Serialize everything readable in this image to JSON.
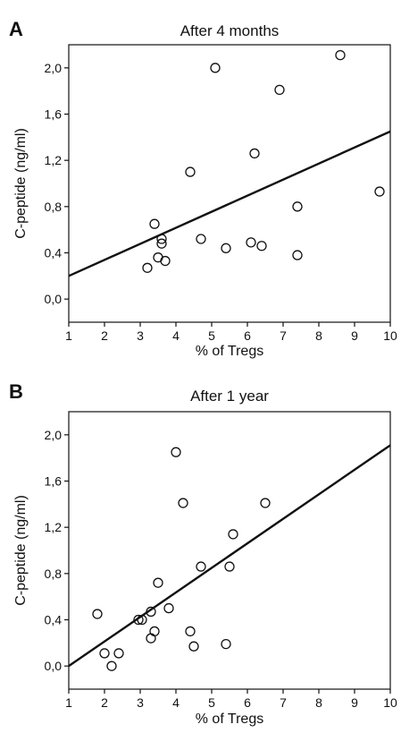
{
  "chart_data": [
    {
      "type": "scatter",
      "panel_letter": "A",
      "title": "After 4 months",
      "xlabel": "% of Tregs",
      "ylabel": "C-peptide (ng/ml)",
      "xlim": [
        1,
        10
      ],
      "ylim": [
        -0.2,
        2.2
      ],
      "xticks": [
        "1",
        "2",
        "3",
        "4",
        "5",
        "6",
        "7",
        "8",
        "9",
        "10"
      ],
      "yticks": [
        "0,0",
        "0,4",
        "0,8",
        "1,2",
        "1,6",
        "2,0"
      ],
      "grid": false,
      "points": [
        {
          "x": 3.2,
          "y": 0.27
        },
        {
          "x": 3.4,
          "y": 0.65
        },
        {
          "x": 3.5,
          "y": 0.36
        },
        {
          "x": 3.6,
          "y": 0.52
        },
        {
          "x": 3.6,
          "y": 0.48
        },
        {
          "x": 3.7,
          "y": 0.33
        },
        {
          "x": 4.4,
          "y": 1.1
        },
        {
          "x": 4.7,
          "y": 0.52
        },
        {
          "x": 5.1,
          "y": 2.0
        },
        {
          "x": 5.4,
          "y": 0.44
        },
        {
          "x": 6.1,
          "y": 0.49
        },
        {
          "x": 6.2,
          "y": 1.26
        },
        {
          "x": 6.4,
          "y": 0.46
        },
        {
          "x": 6.9,
          "y": 1.81
        },
        {
          "x": 7.4,
          "y": 0.8
        },
        {
          "x": 7.4,
          "y": 0.38
        },
        {
          "x": 8.6,
          "y": 2.11
        },
        {
          "x": 9.7,
          "y": 0.93
        }
      ],
      "fit_line": {
        "x": [
          1,
          10
        ],
        "y": [
          0.2,
          1.45
        ]
      }
    },
    {
      "type": "scatter",
      "panel_letter": "B",
      "title": "After 1 year",
      "xlabel": "% of Tregs",
      "ylabel": "C-peptide (ng/ml)",
      "xlim": [
        1,
        10
      ],
      "ylim": [
        -0.2,
        2.2
      ],
      "xticks": [
        "1",
        "2",
        "3",
        "4",
        "5",
        "6",
        "7",
        "8",
        "9",
        "10"
      ],
      "yticks": [
        "0,0",
        "0,4",
        "0,8",
        "1,2",
        "1,6",
        "2,0"
      ],
      "grid": false,
      "points": [
        {
          "x": 1.8,
          "y": 0.45
        },
        {
          "x": 2.0,
          "y": 0.11
        },
        {
          "x": 2.2,
          "y": 0.0
        },
        {
          "x": 2.4,
          "y": 0.11
        },
        {
          "x": 2.95,
          "y": 0.4
        },
        {
          "x": 3.05,
          "y": 0.4
        },
        {
          "x": 3.3,
          "y": 0.47
        },
        {
          "x": 3.3,
          "y": 0.24
        },
        {
          "x": 3.4,
          "y": 0.3
        },
        {
          "x": 3.5,
          "y": 0.72
        },
        {
          "x": 3.8,
          "y": 0.5
        },
        {
          "x": 4.0,
          "y": 1.85
        },
        {
          "x": 4.2,
          "y": 1.41
        },
        {
          "x": 4.4,
          "y": 0.3
        },
        {
          "x": 4.5,
          "y": 0.17
        },
        {
          "x": 4.7,
          "y": 0.86
        },
        {
          "x": 5.4,
          "y": 0.19
        },
        {
          "x": 5.5,
          "y": 0.86
        },
        {
          "x": 5.6,
          "y": 1.14
        },
        {
          "x": 6.5,
          "y": 1.41
        }
      ],
      "fit_line": {
        "x": [
          1,
          10
        ],
        "y": [
          0.0,
          1.91
        ]
      }
    }
  ]
}
